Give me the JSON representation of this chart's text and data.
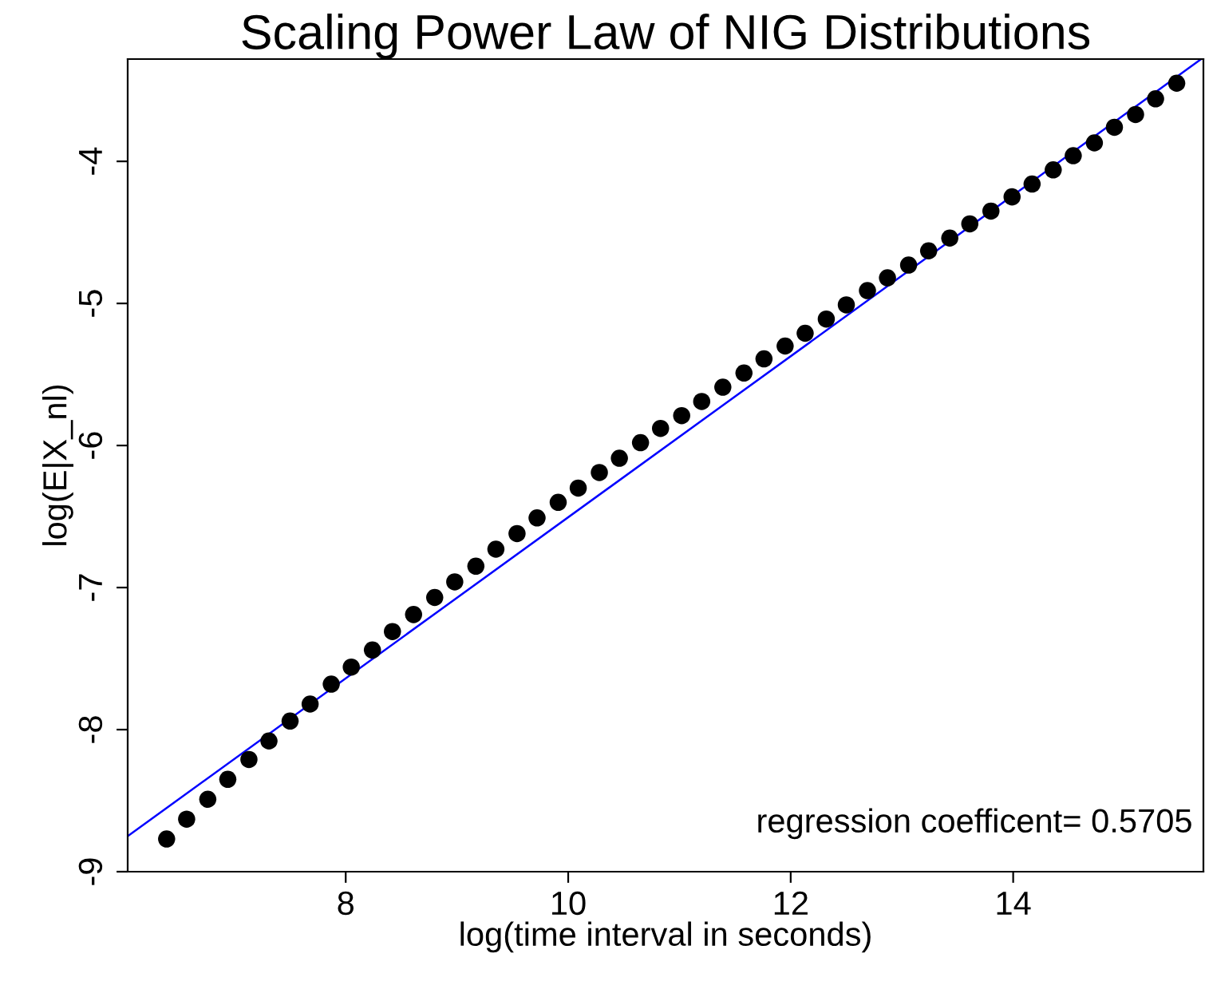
{
  "chart_data": {
    "type": "scatter",
    "title": "Scaling Power Law of NIG Distributions",
    "xlabel": "log(time interval in seconds)",
    "ylabel": "log(E|X_nl)",
    "annotations": [
      "regression coefficent= 0.5705"
    ],
    "xlim": [
      6.04,
      15.71
    ],
    "ylim": [
      -9.0,
      -3.28
    ],
    "xticks": [
      8,
      10,
      12,
      14
    ],
    "yticks": [
      -9,
      -8,
      -7,
      -6,
      -5,
      -4
    ],
    "grid": false,
    "legend": false,
    "series": [
      {
        "marker": "circle",
        "color": "#000000",
        "x": [
          6.39,
          6.57,
          6.76,
          6.94,
          7.13,
          7.31,
          7.5,
          7.68,
          7.87,
          8.05,
          8.24,
          8.42,
          8.61,
          8.8,
          8.98,
          9.17,
          9.35,
          9.54,
          9.72,
          9.91,
          10.09,
          10.28,
          10.46,
          10.65,
          10.83,
          11.02,
          11.2,
          11.39,
          11.58,
          11.76,
          11.95,
          12.13,
          12.32,
          12.5,
          12.69,
          12.87,
          13.06,
          13.24,
          13.43,
          13.61,
          13.8,
          13.99,
          14.17,
          14.36,
          14.54,
          14.73,
          14.91,
          15.1,
          15.28,
          15.47
        ],
        "values": [
          -8.77,
          -8.63,
          -8.49,
          -8.35,
          -8.21,
          -8.08,
          -7.94,
          -7.82,
          -7.68,
          -7.56,
          -7.44,
          -7.31,
          -7.19,
          -7.07,
          -6.96,
          -6.85,
          -6.73,
          -6.62,
          -6.51,
          -6.4,
          -6.3,
          -6.19,
          -6.09,
          -5.98,
          -5.88,
          -5.79,
          -5.69,
          -5.59,
          -5.49,
          -5.39,
          -5.3,
          -5.21,
          -5.11,
          -5.01,
          -4.91,
          -4.82,
          -4.73,
          -4.63,
          -4.54,
          -4.44,
          -4.35,
          -4.25,
          -4.16,
          -4.06,
          -3.96,
          -3.87,
          -3.76,
          -3.67,
          -3.56,
          -3.45
        ]
      },
      {
        "type": "line",
        "marker": "none",
        "color": "#0000ff",
        "x": [
          6.04,
          15.69
        ],
        "values": [
          -8.75,
          -3.28
        ]
      }
    ]
  }
}
